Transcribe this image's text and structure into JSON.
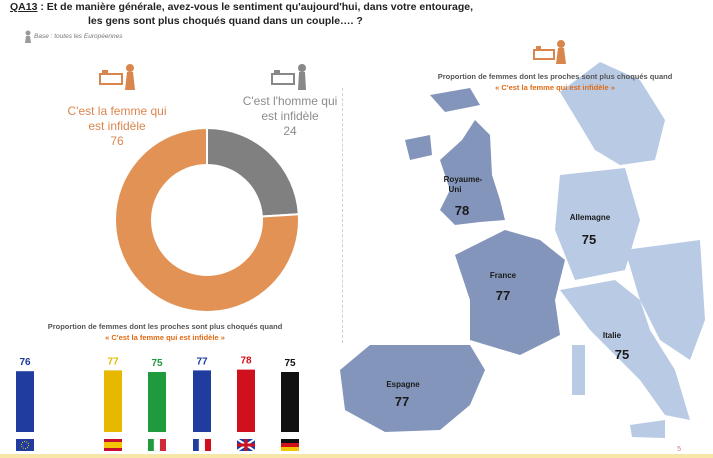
{
  "question": {
    "code": "QA13",
    "line1": " : Et de manière générale, avez-vous le sentiment qu'aujourd'hui, dans votre entourage,",
    "line2": "les gens sont plus choqués quand dans un couple…. ?"
  },
  "base": "Base : toutes les Européennes",
  "donut": {
    "woman_label": "C'est la femme qui est infidèle",
    "woman_value": "76",
    "man_label": "C'est l'homme qui est infidèle",
    "man_value": "24"
  },
  "bars_title": "Proportion de femmes dont les proches sont plus choqués quand",
  "bars_subtitle": "« C'est la femme qui est infidèle »",
  "map_title": "Proportion de femmes dont les proches sont plus choqués quand",
  "map_subtitle": "« C'est la femme qui est infidèle »",
  "map_regions": [
    {
      "name": "Royaume-Uni",
      "value": "78"
    },
    {
      "name": "Allemagne",
      "value": "75"
    },
    {
      "name": "France",
      "value": "77"
    },
    {
      "name": "Italie",
      "value": "75"
    },
    {
      "name": "Espagne",
      "value": "77"
    }
  ],
  "page_number": "5",
  "colors": {
    "donut_woman": "#E39256",
    "donut_man": "#808080",
    "map_light": "#B9CAE5",
    "map_dark": "#8395BA"
  },
  "chart_data": [
    {
      "type": "pie",
      "categories": [
        "C'est la femme qui est infidèle",
        "C'est l'homme qui est infidèle"
      ],
      "values": [
        76,
        24
      ]
    },
    {
      "type": "bar",
      "title": "Proportion de femmes dont les proches sont plus choqués quand",
      "subtitle": "« C'est la femme qui est infidèle »",
      "categories": [
        "UE",
        "Espagne",
        "Italie",
        "France",
        "Royaume-Uni",
        "Allemagne"
      ],
      "values": [
        76,
        77,
        75,
        77,
        78,
        75
      ],
      "flags": [
        "eu-flag-icon",
        "spain-flag-icon",
        "italy-flag-icon",
        "france-flag-icon",
        "uk-flag-icon",
        "germany-flag-icon"
      ],
      "label_colors": [
        "#1a3a9a",
        "#e8b800",
        "#1f9a3c",
        "#1a3a9a",
        "#d0101c",
        "#111111"
      ]
    }
  ]
}
